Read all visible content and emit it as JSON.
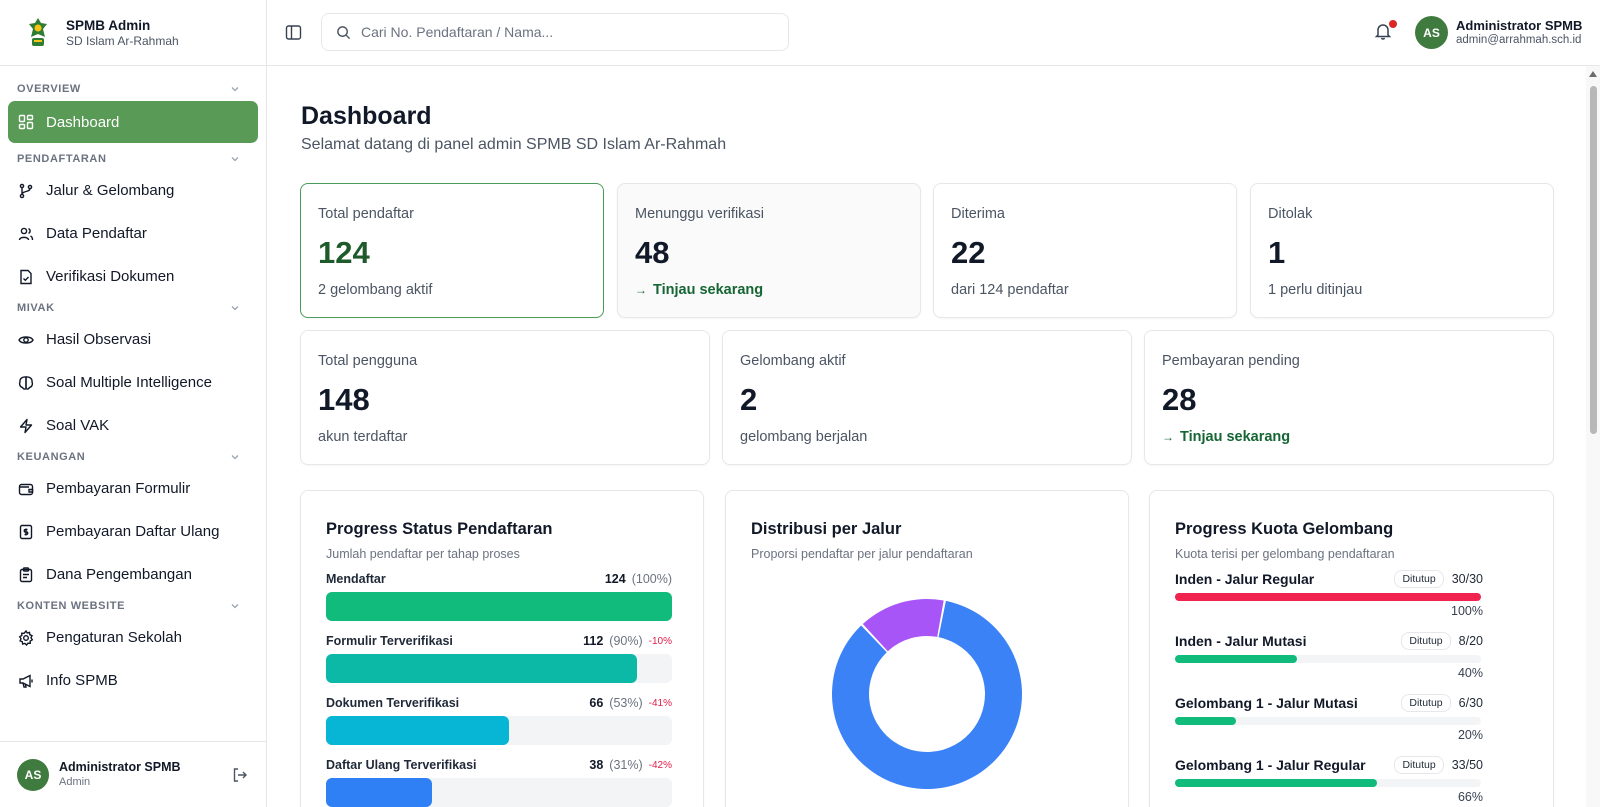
{
  "brand": {
    "title": "SPMB Admin",
    "subtitle": "SD Islam Ar-Rahmah"
  },
  "sidebar": {
    "groups": [
      {
        "label": "OVERVIEW"
      },
      {
        "label": "PENDAFTARAN"
      },
      {
        "label": "MIVAK"
      },
      {
        "label": "KEUANGAN"
      },
      {
        "label": "KONTEN WEBSITE"
      }
    ],
    "items": [
      {
        "label": "Dashboard",
        "icon": "layout-grid-icon",
        "active": true
      },
      {
        "label": "Jalur & Gelombang",
        "icon": "git-branch-icon"
      },
      {
        "label": "Data Pendaftar",
        "icon": "users-icon"
      },
      {
        "label": "Verifikasi Dokumen",
        "icon": "file-check-icon"
      },
      {
        "label": "Hasil Observasi",
        "icon": "eye-icon"
      },
      {
        "label": "Soal Multiple Intelligence",
        "icon": "brain-icon"
      },
      {
        "label": "Soal VAK",
        "icon": "zap-icon"
      },
      {
        "label": "Pembayaran Formulir",
        "icon": "wallet-icon"
      },
      {
        "label": "Pembayaran Daftar Ulang",
        "icon": "receipt-icon"
      },
      {
        "label": "Dana Pengembangan",
        "icon": "clipboard-icon"
      },
      {
        "label": "Pengaturan Sekolah",
        "icon": "gear-icon"
      },
      {
        "label": "Info SPMB",
        "icon": "megaphone-icon"
      }
    ],
    "footer": {
      "initials": "AS",
      "name": "Administrator SPMB",
      "role": "Admin"
    }
  },
  "header": {
    "search_placeholder": "Cari No. Pendaftaran / Nama...",
    "user": {
      "initials": "AS",
      "name": "Administrator SPMB",
      "email": "admin@arrahmah.sch.id"
    }
  },
  "page": {
    "title": "Dashboard",
    "subtitle": "Selamat datang di panel admin SPMB SD Islam Ar-Rahmah"
  },
  "stats_row1": [
    {
      "label": "Total pendaftar",
      "value": "124",
      "foot": "2 gelombang aktif"
    },
    {
      "label": "Menunggu verifikasi",
      "value": "48",
      "link": "Tinjau sekarang"
    },
    {
      "label": "Diterima",
      "value": "22",
      "foot": "dari 124 pendaftar"
    },
    {
      "label": "Ditolak",
      "value": "1",
      "foot": "1 perlu ditinjau"
    }
  ],
  "stats_row2": [
    {
      "label": "Total pengguna",
      "value": "148",
      "foot": "akun terdaftar"
    },
    {
      "label": "Gelombang aktif",
      "value": "2",
      "foot": "gelombang berjalan"
    },
    {
      "label": "Pembayaran pending",
      "value": "28",
      "link": "Tinjau sekarang"
    }
  ],
  "progress_status": {
    "title": "Progress Status Pendaftaran",
    "subtitle": "Jumlah pendaftar per tahap proses",
    "rows": [
      {
        "label": "Mendaftar",
        "count": "124",
        "pct_text": "(100%)",
        "delta": "",
        "fraction": 1.0,
        "color": "#10bb7c"
      },
      {
        "label": "Formulir Terverifikasi",
        "count": "112",
        "pct_text": "(90%)",
        "delta": "-10%",
        "fraction": 0.9,
        "color": "#0cb8a6"
      },
      {
        "label": "Dokumen Terverifikasi",
        "count": "66",
        "pct_text": "(53%)",
        "delta": "-41%",
        "fraction": 0.53,
        "color": "#06b6d4"
      },
      {
        "label": "Daftar Ulang Terverifikasi",
        "count": "38",
        "pct_text": "(31%)",
        "delta": "-42%",
        "fraction": 0.305,
        "color": "#2f80f5"
      }
    ]
  },
  "distribusi": {
    "title": "Distribusi per Jalur",
    "subtitle": "Proporsi pendaftar per jalur pendaftaran",
    "slices": [
      {
        "fraction": 0.85,
        "color": "#3b82f6"
      },
      {
        "fraction": 0.15,
        "color": "#a855f7"
      }
    ]
  },
  "kuota": {
    "title": "Progress Kuota Gelombang",
    "subtitle": "Kuota terisi per gelombang pendaftaran",
    "rows": [
      {
        "name": "Inden - Jalur Regular",
        "badge": "Ditutup",
        "count": "30/30",
        "pct_text": "100%",
        "fraction": 1.0,
        "color": "#f0244f"
      },
      {
        "name": "Inden - Jalur Mutasi",
        "badge": "Ditutup",
        "count": "8/20",
        "pct_text": "40%",
        "fraction": 0.4,
        "color": "#10bb7c"
      },
      {
        "name": "Gelombang 1 - Jalur Mutasi",
        "badge": "Ditutup",
        "count": "6/30",
        "pct_text": "20%",
        "fraction": 0.2,
        "color": "#10bb7c"
      },
      {
        "name": "Gelombang 1 - Jalur Regular",
        "badge": "Ditutup",
        "count": "33/50",
        "pct_text": "66%",
        "fraction": 0.66,
        "color": "#10bb7c"
      }
    ]
  },
  "colors": {
    "accent": "#5a9a57",
    "accent_dark": "#1f5a2a",
    "link": "#166534"
  }
}
